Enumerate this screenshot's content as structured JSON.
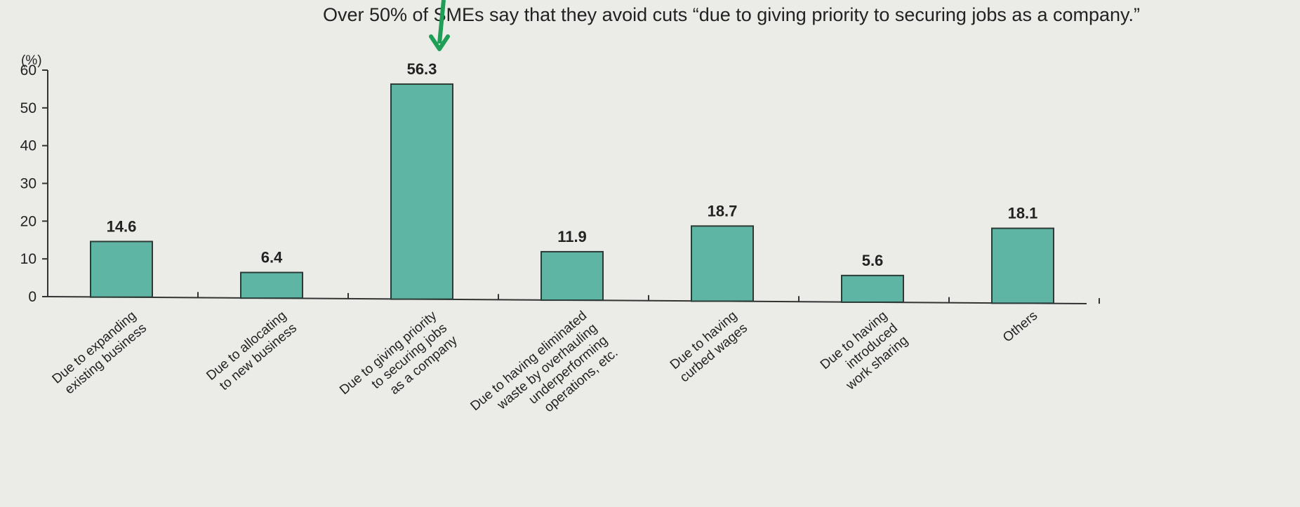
{
  "chart_data": {
    "type": "bar",
    "title": "Over 50% of SMEs say that they avoid cuts “due to giving priority to securing jobs as a company.”",
    "ylabel": "(%)",
    "ylim": [
      0,
      60
    ],
    "yticks": [
      0,
      10,
      20,
      30,
      40,
      50,
      60
    ],
    "grid": false,
    "categories": [
      [
        "Due to expanding",
        "existing business"
      ],
      [
        "Due to allocating",
        "to new business"
      ],
      [
        "Due to giving priority",
        "to securing jobs",
        "as a company"
      ],
      [
        "Due to having eliminated",
        "waste by overhauling",
        "underperforming",
        "operations, etc."
      ],
      [
        "Due to having",
        "curbed wages"
      ],
      [
        "Due to having",
        "introduced",
        "work sharing"
      ],
      [
        "Others"
      ]
    ],
    "values": [
      14.6,
      6.4,
      56.3,
      11.9,
      18.7,
      5.6,
      18.1
    ],
    "value_labels": [
      "14.6",
      "6.4",
      "56.3",
      "11.9",
      "18.7",
      "5.6",
      "18.1"
    ],
    "highlight_index": 2,
    "colors": {
      "bar_fill": "#5fb5a4",
      "bar_stroke": "#2b3a36",
      "axis": "#333333",
      "arrow": "#1f9e55",
      "background": "#ebece8"
    }
  }
}
